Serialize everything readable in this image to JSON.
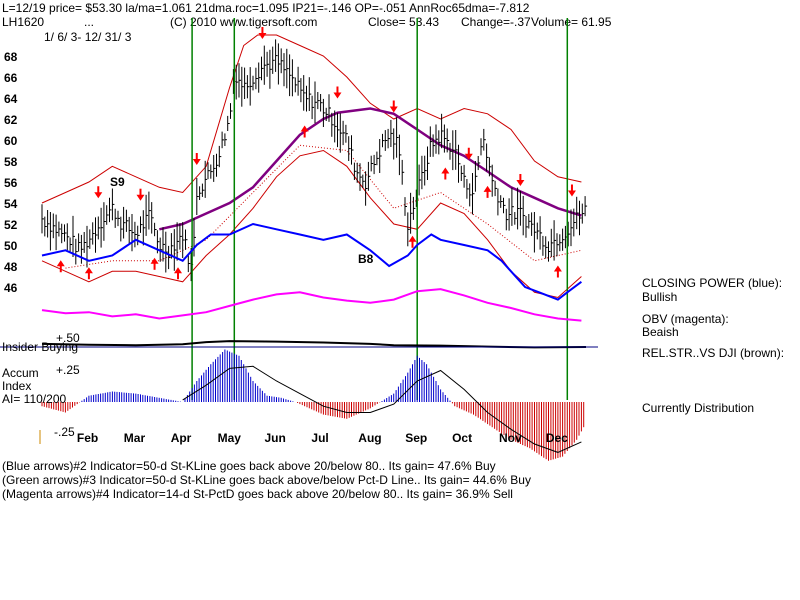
{
  "header": {
    "line1": "L=12/19  price= $53.30  la/ma=1.061  21dma.roc=1.095  IP21=-.146  OP=-.051  AnnRoc65dma=-7.812",
    "ticker": "LH1620",
    "dots": "...",
    "copyright": "(C) 2010 www.tigersoft.com",
    "close": "Close=  53.43",
    "change": "Change=-.37",
    "volume": "Volume=  61.95",
    "date_range": "1/ 6/ 3- 12/ 31/ 3"
  },
  "indicator_labels": {
    "insider_buying": "Insider Buying",
    "plus50": "+.50",
    "plus25": "+.25",
    "minus25": "-.25",
    "accum_line1": "Accum",
    "accum_line2": "Index",
    "ai": "AI= 110/200"
  },
  "side_legend": {
    "closing_power_title": "CLOSING POWER (blue):",
    "closing_power_value": "Bullish",
    "obv_title": "OBV (magenta):",
    "obv_value": "Beaish",
    "relstr_title": "REL.STR..VS DJI (brown):",
    "status": "Currently Distribution"
  },
  "footer": {
    "line1": "(Blue arrows)#2 Indicator=50-d St-KLine goes back above 20/below 80.. Its gain= 47.6% Buy",
    "line2": "(Green arrows)#3 Indicator=50-d St-KLine goes back above/below Pct-D Line.. Its gain= 44.6% Buy",
    "line3": "(Magenta arrows)#4 Indicator=14-d St-PctD goes back above 20/below 80.. Its gain= 36.9% Sell"
  },
  "chart_data": {
    "type": "line",
    "x_axis": {
      "labels": [
        "Feb",
        "Mar",
        "Apr",
        "May",
        "Jun",
        "Jul",
        "Aug",
        "Sep",
        "Oct",
        "Nov",
        "Dec"
      ]
    },
    "y_axis": {
      "ticks": [
        46,
        48,
        50,
        52,
        54,
        56,
        58,
        60,
        62,
        64,
        66,
        68
      ],
      "range": [
        44,
        70
      ]
    },
    "signal_labels": [
      {
        "text": "S9",
        "month": "Feb"
      },
      {
        "text": "B8",
        "month": "Aug"
      }
    ],
    "green_signal_months": [
      3.2,
      4.1,
      8.0,
      11.2
    ],
    "price_path": [
      [
        0.0,
        52.5
      ],
      [
        0.3,
        51.5
      ],
      [
        0.6,
        50.5
      ],
      [
        0.8,
        49.5
      ],
      [
        1.0,
        50.5
      ],
      [
        1.3,
        52.5
      ],
      [
        1.5,
        53.5
      ],
      [
        1.7,
        52.0
      ],
      [
        2.0,
        51.0
      ],
      [
        2.3,
        52.8
      ],
      [
        2.5,
        50.0
      ],
      [
        2.7,
        49.5
      ],
      [
        3.0,
        51.0
      ],
      [
        3.2,
        47.5
      ],
      [
        3.3,
        55.0
      ],
      [
        3.6,
        57.0
      ],
      [
        3.8,
        59.0
      ],
      [
        4.0,
        62.0
      ],
      [
        4.1,
        66.5
      ],
      [
        4.3,
        65.0
      ],
      [
        4.5,
        66.0
      ],
      [
        4.7,
        67.0
      ],
      [
        5.0,
        67.5
      ],
      [
        5.3,
        66.0
      ],
      [
        5.6,
        64.0
      ],
      [
        5.9,
        63.5
      ],
      [
        6.2,
        62.0
      ],
      [
        6.5,
        60.0
      ],
      [
        6.7,
        57.0
      ],
      [
        6.9,
        56.0
      ],
      [
        7.2,
        59.0
      ],
      [
        7.4,
        60.5
      ],
      [
        7.6,
        59.5
      ],
      [
        7.8,
        52.0
      ],
      [
        8.0,
        55.0
      ],
      [
        8.3,
        59.5
      ],
      [
        8.5,
        60.5
      ],
      [
        8.8,
        59.0
      ],
      [
        9.0,
        56.0
      ],
      [
        9.2,
        55.0
      ],
      [
        9.4,
        60.5
      ],
      [
        9.6,
        56.0
      ],
      [
        9.9,
        53.0
      ],
      [
        10.2,
        53.0
      ],
      [
        10.5,
        51.5
      ],
      [
        10.8,
        50.0
      ],
      [
        11.1,
        51.0
      ],
      [
        11.4,
        52.5
      ],
      [
        11.6,
        53.4
      ]
    ],
    "ma_path": [
      [
        2.5,
        51.5
      ],
      [
        3.0,
        52.0
      ],
      [
        3.5,
        53.0
      ],
      [
        4.0,
        54.0
      ],
      [
        4.5,
        55.5
      ],
      [
        5.0,
        58.0
      ],
      [
        5.5,
        60.5
      ],
      [
        6.0,
        62.0
      ],
      [
        6.3,
        62.6
      ],
      [
        7.0,
        63.0
      ],
      [
        7.5,
        62.5
      ],
      [
        8.0,
        61.0
      ],
      [
        8.5,
        59.5
      ],
      [
        9.0,
        58.5
      ],
      [
        9.5,
        57.0
      ],
      [
        10.0,
        55.5
      ],
      [
        10.5,
        54.5
      ],
      [
        11.0,
        53.5
      ],
      [
        11.5,
        52.8
      ]
    ],
    "upper_band": [
      [
        0.0,
        54.0
      ],
      [
        0.5,
        55.0
      ],
      [
        1.0,
        56.0
      ],
      [
        1.5,
        57.5
      ],
      [
        2.0,
        56.5
      ],
      [
        2.5,
        55.5
      ],
      [
        3.0,
        55.0
      ],
      [
        3.5,
        57.5
      ],
      [
        4.0,
        65.0
      ],
      [
        4.3,
        69.0
      ],
      [
        4.6,
        70.0
      ],
      [
        5.0,
        70.0
      ],
      [
        5.5,
        69.0
      ],
      [
        6.0,
        68.0
      ],
      [
        6.5,
        66.0
      ],
      [
        7.0,
        63.5
      ],
      [
        7.5,
        62.0
      ],
      [
        8.0,
        63.0
      ],
      [
        8.5,
        62.0
      ],
      [
        9.0,
        63.0
      ],
      [
        9.5,
        62.5
      ],
      [
        10.0,
        61.0
      ],
      [
        10.5,
        58.0
      ],
      [
        11.0,
        56.5
      ],
      [
        11.5,
        56.0
      ]
    ],
    "lower_band": [
      [
        0.0,
        48.5
      ],
      [
        0.5,
        47.5
      ],
      [
        1.0,
        46.5
      ],
      [
        1.5,
        47.5
      ],
      [
        2.0,
        47.5
      ],
      [
        2.5,
        47.0
      ],
      [
        3.0,
        46.5
      ],
      [
        3.5,
        49.0
      ],
      [
        4.0,
        51.0
      ],
      [
        4.5,
        53.5
      ],
      [
        5.0,
        56.5
      ],
      [
        5.5,
        58.5
      ],
      [
        6.0,
        59.0
      ],
      [
        6.5,
        57.5
      ],
      [
        7.0,
        54.5
      ],
      [
        7.5,
        52.0
      ],
      [
        8.0,
        51.5
      ],
      [
        8.5,
        54.0
      ],
      [
        9.0,
        53.0
      ],
      [
        9.5,
        50.5
      ],
      [
        10.0,
        47.5
      ],
      [
        10.5,
        45.5
      ],
      [
        11.0,
        45.0
      ],
      [
        11.5,
        47.0
      ]
    ],
    "inner_band": [
      [
        0.5,
        47.8
      ],
      [
        1.5,
        48.5
      ],
      [
        2.5,
        48.5
      ],
      [
        3.5,
        50.5
      ],
      [
        4.5,
        55.0
      ],
      [
        5.5,
        59.5
      ],
      [
        6.5,
        59.0
      ],
      [
        7.5,
        53.5
      ],
      [
        8.5,
        55.0
      ],
      [
        9.5,
        52.0
      ],
      [
        10.5,
        48.5
      ],
      [
        11.5,
        49.5
      ]
    ],
    "closing_power_blue": [
      [
        0.0,
        49.0
      ],
      [
        0.5,
        49.5
      ],
      [
        1.0,
        48.5
      ],
      [
        1.5,
        49.0
      ],
      [
        2.0,
        50.5
      ],
      [
        2.5,
        49.5
      ],
      [
        3.0,
        48.5
      ],
      [
        3.3,
        50.0
      ],
      [
        3.6,
        51.0
      ],
      [
        4.0,
        51.0
      ],
      [
        4.5,
        52.0
      ],
      [
        5.0,
        51.5
      ],
      [
        5.5,
        51.0
      ],
      [
        6.0,
        50.5
      ],
      [
        6.5,
        51.0
      ],
      [
        7.0,
        49.5
      ],
      [
        7.4,
        48.0
      ],
      [
        7.8,
        49.0
      ],
      [
        8.0,
        50.0
      ],
      [
        8.3,
        51.0
      ],
      [
        8.5,
        50.5
      ],
      [
        9.0,
        50.0
      ],
      [
        9.5,
        49.5
      ],
      [
        9.8,
        48.5
      ],
      [
        10.0,
        47.5
      ],
      [
        10.3,
        46.0
      ],
      [
        10.6,
        45.5
      ],
      [
        11.0,
        44.8
      ],
      [
        11.2,
        45.5
      ],
      [
        11.5,
        46.5
      ]
    ],
    "obv_magenta": [
      [
        0.0,
        43.8
      ],
      [
        0.5,
        43.5
      ],
      [
        1.0,
        43.6
      ],
      [
        1.5,
        43.2
      ],
      [
        2.0,
        43.4
      ],
      [
        2.5,
        43.0
      ],
      [
        3.0,
        43.3
      ],
      [
        3.5,
        43.6
      ],
      [
        4.0,
        44.2
      ],
      [
        4.5,
        44.8
      ],
      [
        5.0,
        45.3
      ],
      [
        5.5,
        45.5
      ],
      [
        6.0,
        45.0
      ],
      [
        6.5,
        44.7
      ],
      [
        7.0,
        44.5
      ],
      [
        7.5,
        44.8
      ],
      [
        8.0,
        45.6
      ],
      [
        8.5,
        45.8
      ],
      [
        9.0,
        45.2
      ],
      [
        9.5,
        44.5
      ],
      [
        10.0,
        44.0
      ],
      [
        10.5,
        43.4
      ],
      [
        11.0,
        43.0
      ],
      [
        11.5,
        42.8
      ]
    ],
    "relstr_brown": [
      [
        0.0,
        0.4
      ],
      [
        1.0,
        0.38
      ],
      [
        2.0,
        0.37
      ],
      [
        3.0,
        0.39
      ],
      [
        3.5,
        0.44
      ],
      [
        4.0,
        0.46
      ],
      [
        5.0,
        0.45
      ],
      [
        6.0,
        0.43
      ],
      [
        7.0,
        0.4
      ],
      [
        7.5,
        0.37
      ],
      [
        8.5,
        0.36
      ],
      [
        9.5,
        0.34
      ],
      [
        10.5,
        0.32
      ],
      [
        11.6,
        0.33
      ]
    ],
    "accumulation_index": [
      [
        0.0,
        -0.02
      ],
      [
        0.5,
        -0.05
      ],
      [
        1.0,
        0.03
      ],
      [
        1.5,
        0.05
      ],
      [
        2.0,
        0.04
      ],
      [
        2.5,
        0.02
      ],
      [
        3.0,
        0.0
      ],
      [
        3.3,
        0.1
      ],
      [
        3.6,
        0.18
      ],
      [
        3.9,
        0.25
      ],
      [
        4.2,
        0.22
      ],
      [
        4.5,
        0.1
      ],
      [
        4.8,
        0.03
      ],
      [
        5.1,
        0.02
      ],
      [
        5.4,
        0.0
      ],
      [
        5.7,
        -0.03
      ],
      [
        6.0,
        -0.06
      ],
      [
        6.5,
        -0.08
      ],
      [
        7.0,
        -0.03
      ],
      [
        7.5,
        0.04
      ],
      [
        7.8,
        0.14
      ],
      [
        8.0,
        0.22
      ],
      [
        8.2,
        0.18
      ],
      [
        8.5,
        0.06
      ],
      [
        8.8,
        -0.02
      ],
      [
        9.2,
        -0.06
      ],
      [
        9.6,
        -0.12
      ],
      [
        10.0,
        -0.18
      ],
      [
        10.4,
        -0.22
      ],
      [
        10.8,
        -0.28
      ],
      [
        11.1,
        -0.26
      ],
      [
        11.4,
        -0.18
      ],
      [
        11.6,
        -0.1
      ]
    ],
    "accum_line_black": [
      [
        3.0,
        0.01
      ],
      [
        3.5,
        0.08
      ],
      [
        4.0,
        0.16
      ],
      [
        4.5,
        0.17
      ],
      [
        5.0,
        0.1
      ],
      [
        5.5,
        0.04
      ],
      [
        6.0,
        -0.02
      ],
      [
        6.5,
        -0.05
      ],
      [
        7.0,
        -0.05
      ],
      [
        7.5,
        -0.01
      ],
      [
        8.0,
        0.1
      ],
      [
        8.5,
        0.15
      ],
      [
        9.0,
        0.06
      ],
      [
        9.5,
        -0.05
      ],
      [
        10.0,
        -0.13
      ],
      [
        10.5,
        -0.2
      ],
      [
        11.0,
        -0.24
      ],
      [
        11.5,
        -0.19
      ]
    ],
    "colors": {
      "price": "#000000",
      "bands": "#cc0000",
      "moving_average": "#800080",
      "closing_power": "#0000ff",
      "obv": "#ff00ff",
      "relative_strength": "#000000",
      "accum_positive": "#0000cc",
      "accum_negative": "#cc0000",
      "signal_lines": "#008000",
      "arrows": "#ff0000",
      "insider_line": "#000080"
    }
  }
}
